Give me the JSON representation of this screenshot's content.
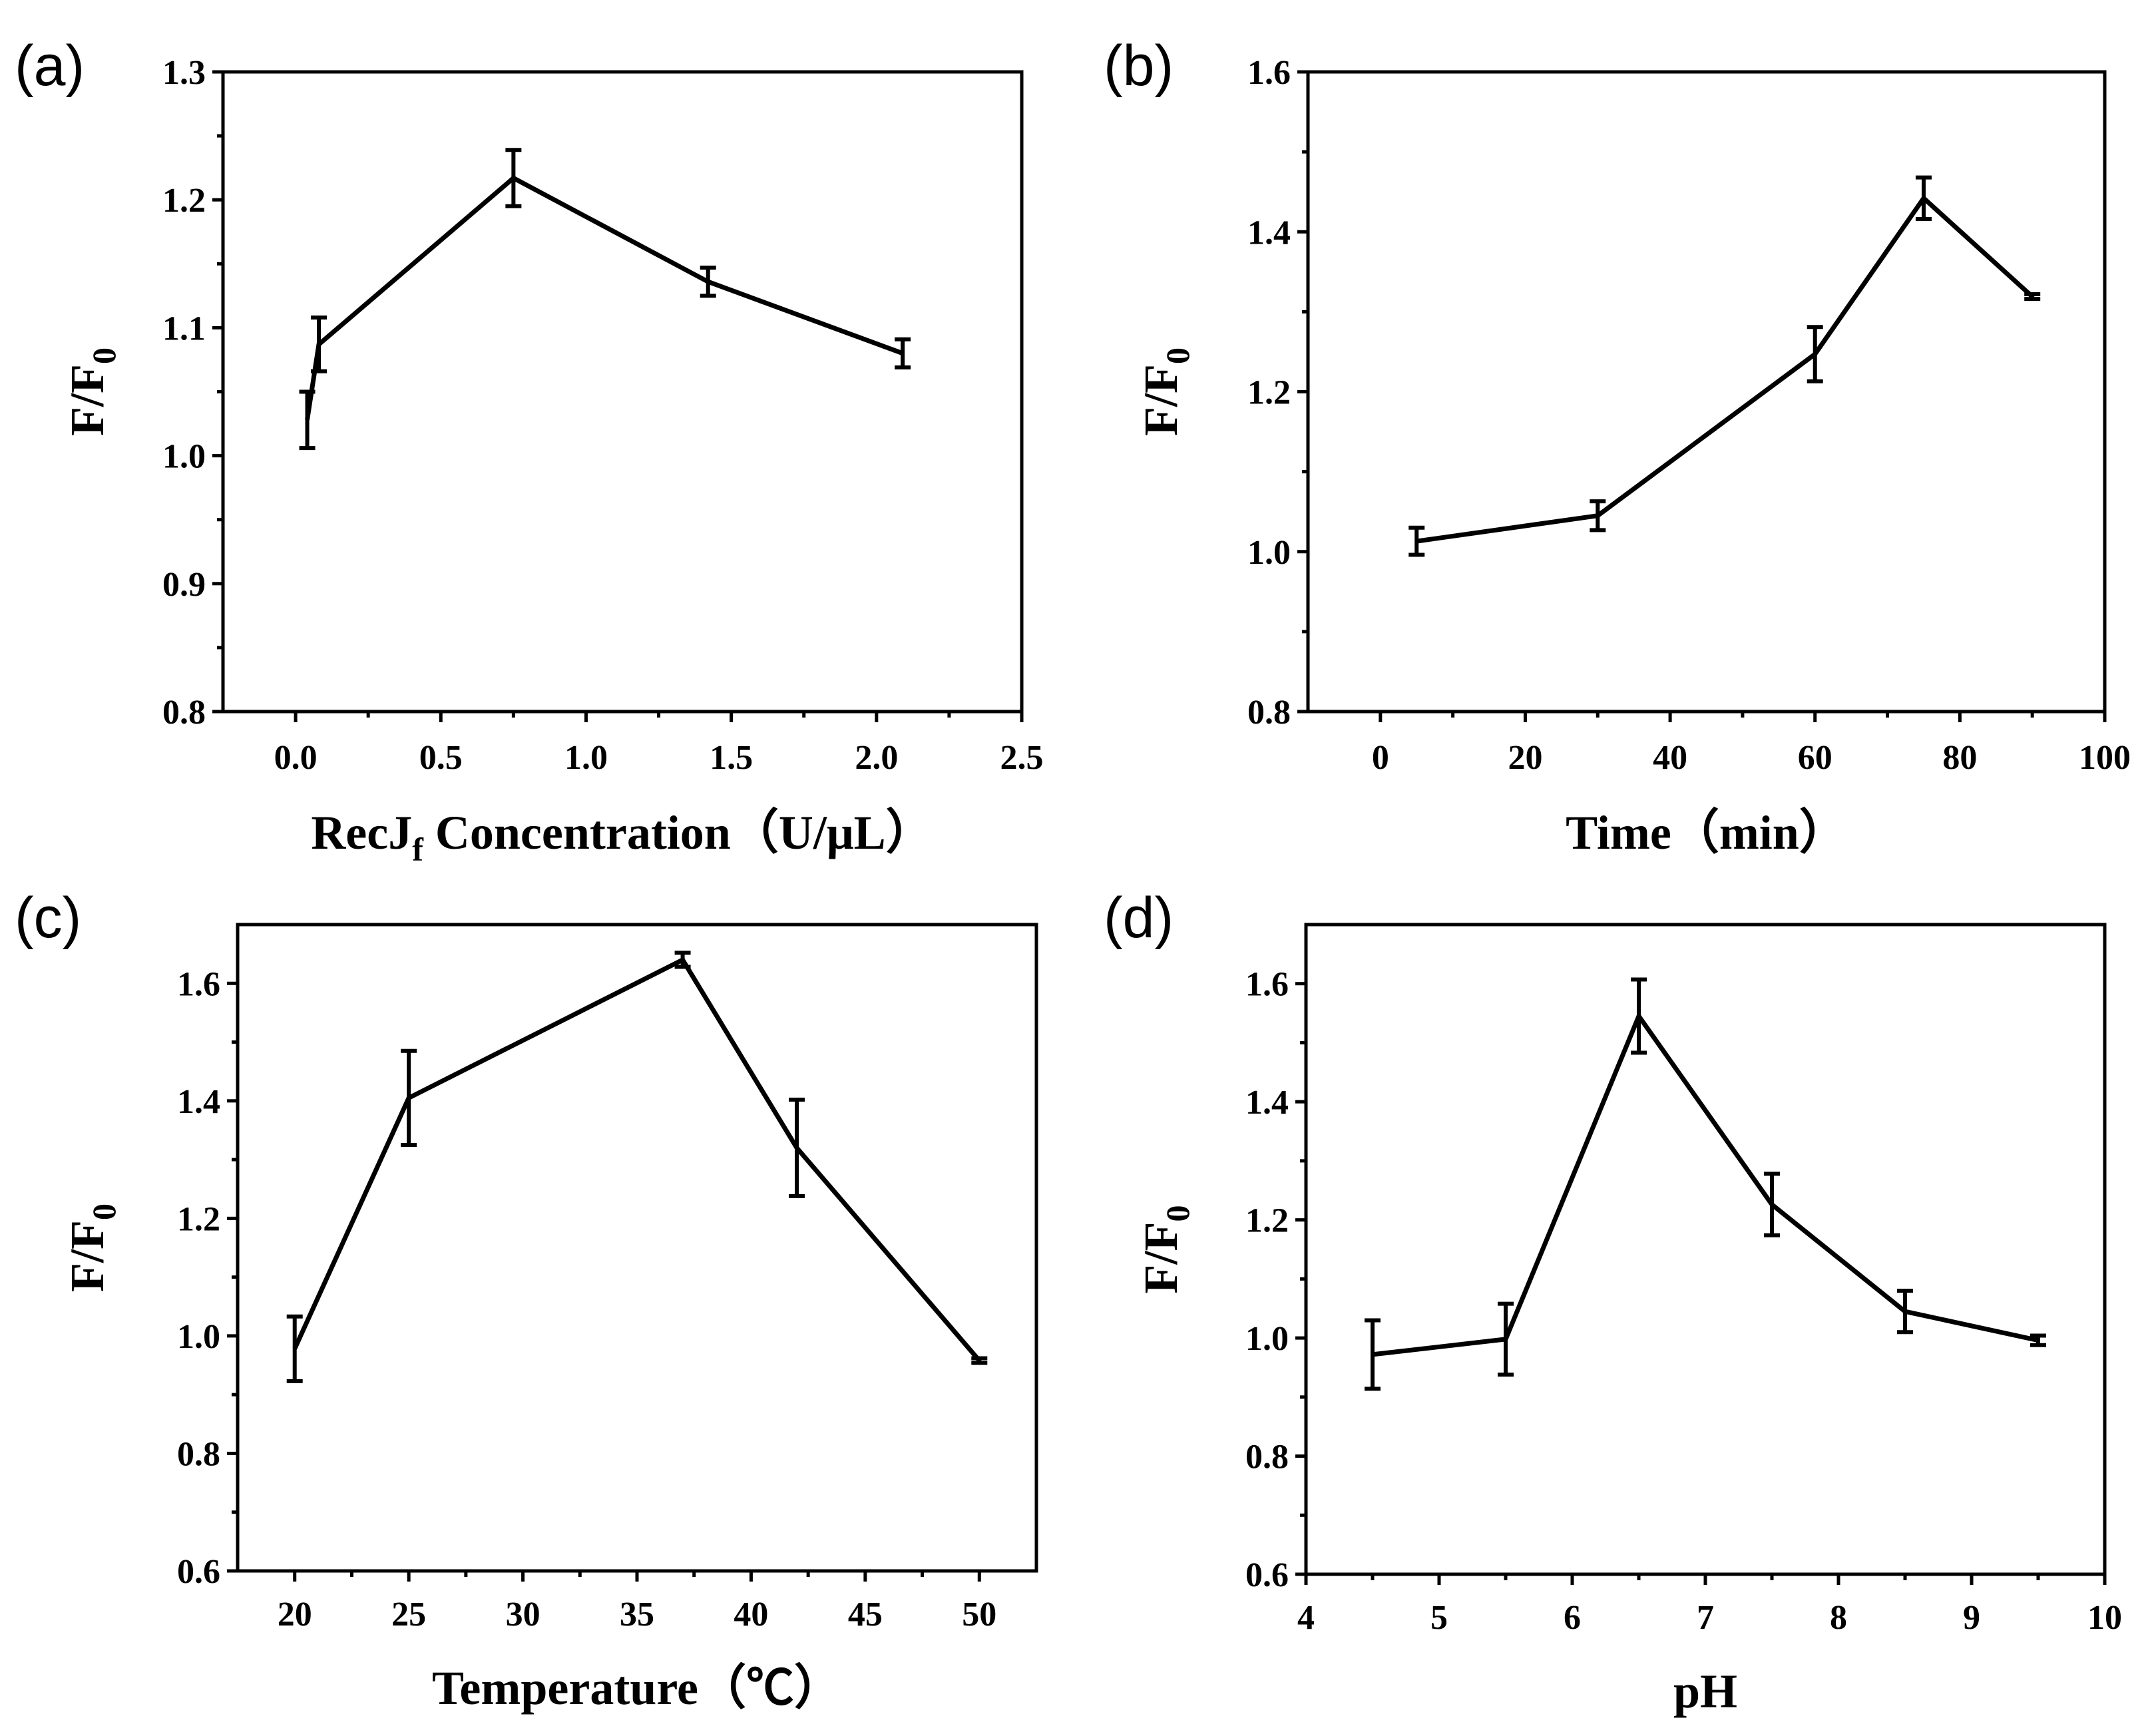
{
  "chart_data": [
    {
      "panel": "(a)",
      "type": "line",
      "xlabel_main": "RecJ",
      "xlabel_sub": "f",
      "xlabel_rest": " Concentration（U/μL）",
      "ylabel_main": "F/F",
      "ylabel_sub": "0",
      "xlim": [
        -0.25,
        2.5
      ],
      "ylim": [
        0.8,
        1.3
      ],
      "xticks": [
        0.0,
        0.5,
        1.0,
        1.5,
        2.0,
        2.5
      ],
      "xtick_labels": [
        "0.0",
        "0.5",
        "1.0",
        "1.5",
        "2.0",
        "2.5"
      ],
      "yticks": [
        0.8,
        0.9,
        1.0,
        1.1,
        1.2,
        1.3
      ],
      "ytick_labels": [
        "0.8",
        "0.9",
        "1.0",
        "1.1",
        "1.2",
        "1.3"
      ],
      "x": [
        0.04,
        0.08,
        0.75,
        1.42,
        2.09
      ],
      "y": [
        1.028,
        1.087,
        1.217,
        1.136,
        1.08
      ],
      "err": [
        0.022,
        0.021,
        0.022,
        0.011,
        0.011
      ]
    },
    {
      "panel": "(b)",
      "type": "line",
      "xlabel_main": "Time（min）",
      "xlabel_sub": "",
      "xlabel_rest": "",
      "ylabel_main": "F/F",
      "ylabel_sub": "0",
      "xlim": [
        -10,
        100
      ],
      "ylim": [
        0.8,
        1.6
      ],
      "xticks": [
        0,
        20,
        40,
        60,
        80,
        100
      ],
      "xtick_labels": [
        "0",
        "20",
        "40",
        "60",
        "80",
        "100"
      ],
      "yticks": [
        0.8,
        1.0,
        1.2,
        1.4,
        1.6
      ],
      "ytick_labels": [
        "0.8",
        "1.0",
        "1.2",
        "1.4",
        "1.6"
      ],
      "x": [
        5,
        30,
        60,
        75,
        90
      ],
      "y": [
        1.013,
        1.045,
        1.247,
        1.442,
        1.319
      ],
      "err": [
        0.017,
        0.018,
        0.034,
        0.026,
        0.003
      ]
    },
    {
      "panel": "(c)",
      "type": "line",
      "xlabel_main": "Temperature（℃）",
      "xlabel_sub": "",
      "xlabel_rest": "",
      "ylabel_main": "F/F",
      "ylabel_sub": "0",
      "xlim": [
        17.5,
        52.5
      ],
      "ylim": [
        0.6,
        1.7
      ],
      "xticks": [
        20,
        25,
        30,
        35,
        40,
        45,
        50
      ],
      "xtick_labels": [
        "20",
        "25",
        "30",
        "35",
        "40",
        "45",
        "50"
      ],
      "yticks": [
        0.6,
        0.8,
        1.0,
        1.2,
        1.4,
        1.6
      ],
      "ytick_labels": [
        "0.6",
        "0.8",
        "1.0",
        "1.2",
        "1.4",
        "1.6"
      ],
      "x": [
        20,
        25,
        37,
        42,
        50
      ],
      "y": [
        0.978,
        1.405,
        1.64,
        1.32,
        0.958
      ],
      "err": [
        0.055,
        0.08,
        0.012,
        0.082,
        0.004
      ]
    },
    {
      "panel": "(d)",
      "type": "line",
      "xlabel_main": "pH",
      "xlabel_sub": "",
      "xlabel_rest": "",
      "ylabel_main": "F/F",
      "ylabel_sub": "0",
      "xlim": [
        4,
        10
      ],
      "ylim": [
        0.6,
        1.7
      ],
      "xticks": [
        4,
        5,
        6,
        7,
        8,
        9,
        10
      ],
      "xtick_labels": [
        "4",
        "5",
        "6",
        "7",
        "8",
        "9",
        "10"
      ],
      "yticks": [
        0.6,
        0.8,
        1.0,
        1.2,
        1.4,
        1.6
      ],
      "ytick_labels": [
        "0.6",
        "0.8",
        "1.0",
        "1.2",
        "1.4",
        "1.6"
      ],
      "x": [
        4.5,
        5.5,
        6.5,
        7.5,
        8.5,
        9.5
      ],
      "y": [
        0.972,
        0.998,
        1.545,
        1.226,
        1.045,
        0.996
      ],
      "err": [
        0.058,
        0.06,
        0.062,
        0.052,
        0.035,
        0.008
      ]
    }
  ]
}
